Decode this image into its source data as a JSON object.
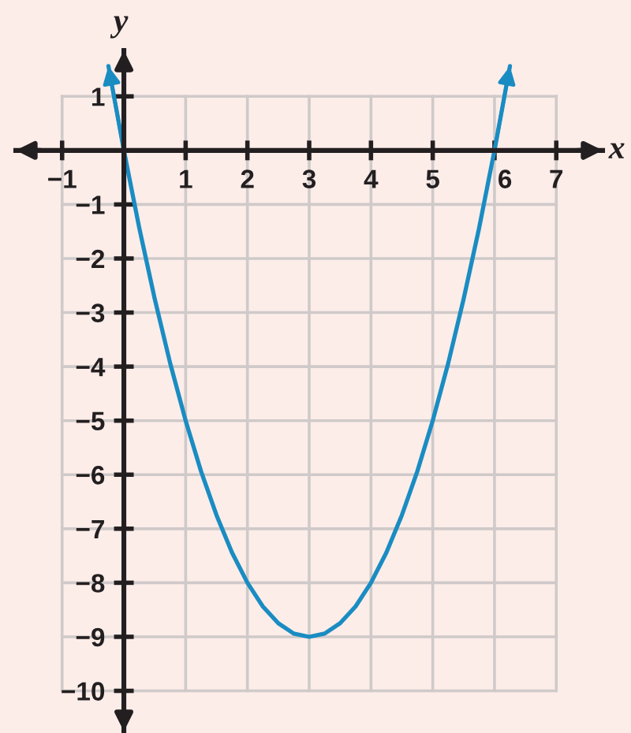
{
  "chart_data": {
    "type": "line",
    "xlabel": "x",
    "ylabel": "y",
    "xlim": [
      -1.75,
      7.75
    ],
    "ylim": [
      -10.75,
      1.85
    ],
    "xticks": [
      -1,
      1,
      2,
      3,
      4,
      5,
      6,
      7
    ],
    "yticks": [
      -10,
      -9,
      -8,
      -7,
      -6,
      -5,
      -4,
      -3,
      -2,
      -1,
      1
    ],
    "grid": true,
    "series": [
      {
        "color": "#1a8cc2",
        "x": [
          -0.25,
          0,
          0.25,
          0.5,
          0.75,
          1,
          1.25,
          1.5,
          1.75,
          2,
          2.25,
          2.5,
          2.75,
          3,
          3.25,
          3.5,
          3.75,
          4,
          4.25,
          4.5,
          4.75,
          5,
          5.25,
          5.5,
          5.75,
          6,
          6.25
        ],
        "values": [
          1.56,
          0,
          -1.44,
          -2.75,
          -3.94,
          -5,
          -5.94,
          -6.75,
          -7.44,
          -8,
          -8.44,
          -8.75,
          -8.94,
          -9,
          -8.94,
          -8.75,
          -8.44,
          -8,
          -7.44,
          -6.75,
          -5.94,
          -5,
          -3.94,
          -2.75,
          -1.44,
          0,
          1.56
        ]
      }
    ]
  }
}
